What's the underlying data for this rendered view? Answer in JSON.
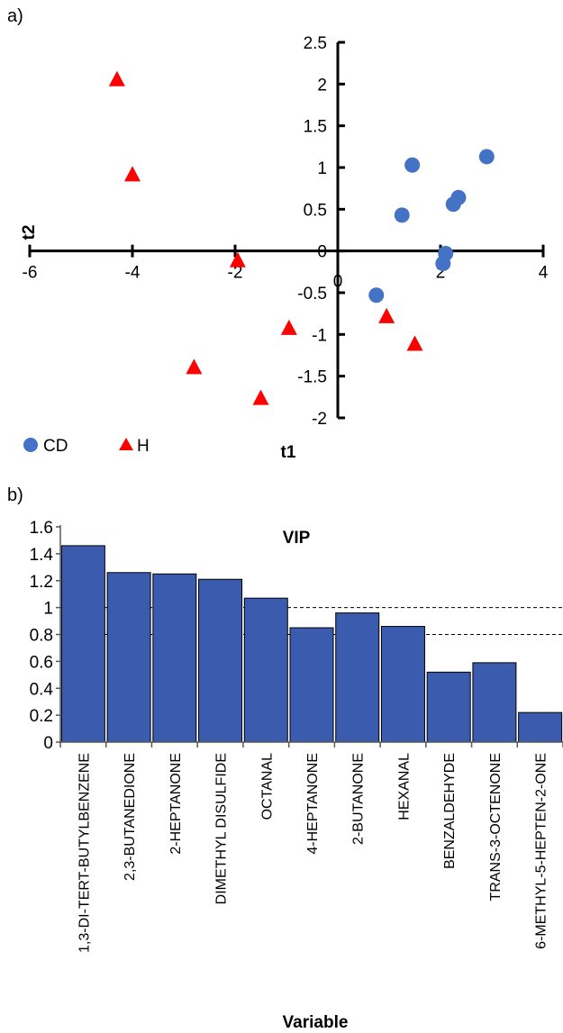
{
  "panel_labels": {
    "a": "a)",
    "b": "b)"
  },
  "colors": {
    "cd": "#4472C4",
    "h": "#FF0000",
    "bar": "#3A5BAE",
    "axis": "#000000"
  },
  "chart_data": [
    {
      "type": "scatter",
      "title": "",
      "xlabel": "t1",
      "ylabel": "t2",
      "xlim": [
        -6,
        4
      ],
      "ylim": [
        -2,
        2.5
      ],
      "xticks": [
        -6,
        -4,
        -2,
        0,
        2,
        4
      ],
      "yticks": [
        2.5,
        2,
        1.5,
        1,
        0.5,
        0,
        -0.5,
        -1,
        -1.5,
        -2
      ],
      "legend_position": "bottom-left",
      "series": [
        {
          "name": "CD",
          "marker": "circle",
          "points": [
            [
              1.45,
              1.03
            ],
            [
              2.9,
              1.13
            ],
            [
              1.25,
              0.43
            ],
            [
              2.35,
              0.64
            ],
            [
              2.25,
              0.56
            ],
            [
              2.1,
              -0.03
            ],
            [
              2.05,
              -0.15
            ],
            [
              0.75,
              -0.53
            ]
          ]
        },
        {
          "name": "H",
          "marker": "triangle",
          "points": [
            [
              -4.3,
              2.05
            ],
            [
              -4.0,
              0.91
            ],
            [
              -1.95,
              -0.12
            ],
            [
              -2.8,
              -1.4
            ],
            [
              -1.5,
              -1.77
            ],
            [
              -0.95,
              -0.93
            ],
            [
              0.95,
              -0.79
            ],
            [
              1.5,
              -1.12
            ]
          ]
        }
      ]
    },
    {
      "type": "bar",
      "title": "VIP",
      "xlabel": "Variable",
      "ylabel": "",
      "ylim": [
        0,
        1.6
      ],
      "yticks": [
        0,
        0.2,
        0.4,
        0.6,
        0.8,
        1,
        1.2,
        1.4,
        1.6
      ],
      "reference_lines": [
        1,
        0.8
      ],
      "categories": [
        "1,3-DI-TERT-BUTYLBENZENE",
        "2,3-BUTANEDIONE",
        "2-HEPTANONE",
        "DIMETHYL DISULFIDE",
        "OCTANAL",
        "4-HEPTANONE",
        "2-BUTANONE",
        "HEXANAL",
        "BENZALDEHYDE",
        "TRANS-3-OCTENONE",
        "6-METHYL-5-HEPTEN-2-ONE"
      ],
      "values": [
        1.46,
        1.26,
        1.25,
        1.21,
        1.07,
        0.85,
        0.96,
        0.86,
        0.52,
        0.59,
        0.22
      ]
    }
  ]
}
